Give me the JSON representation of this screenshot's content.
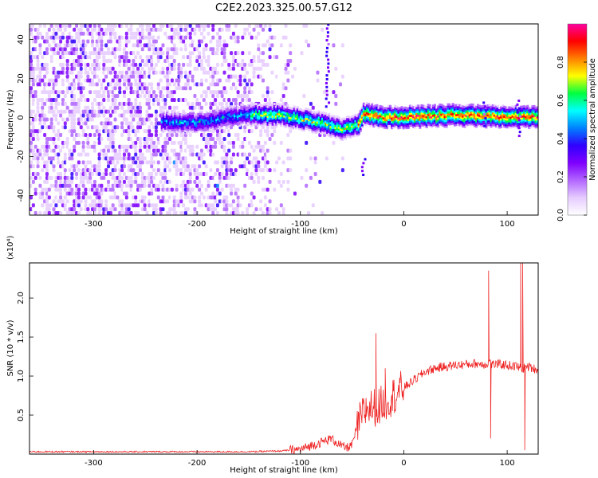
{
  "figure": {
    "title": "C2E2.2023.325.00.57.G12"
  },
  "chart_data": [
    {
      "type": "heatmap",
      "xlabel": "Height of straight line (km)",
      "ylabel": "Frequency (Hz)",
      "xlim": [
        -362,
        130
      ],
      "ylim": [
        -50,
        48
      ],
      "x_ticks": [
        -300,
        -200,
        -100,
        0,
        100
      ],
      "x_tick_labels": [
        "-300",
        "-200",
        "-100",
        "0",
        "100"
      ],
      "y_ticks": [
        -40,
        -20,
        0,
        20,
        40
      ],
      "y_tick_labels": [
        "-40",
        "-20",
        "0",
        "20",
        "40"
      ],
      "colorbar": {
        "label": "Normalized spectral amplitude",
        "range": [
          0.0,
          1.0
        ],
        "ticks": [
          0.0,
          0.2,
          0.4,
          0.6,
          0.8
        ],
        "tick_labels": [
          "0.0",
          "0.2",
          "0.4",
          "0.6",
          "0.8"
        ],
        "colors": [
          "#ffffff",
          "#e6ccff",
          "#b266ff",
          "#7f00ff",
          "#3000ff",
          "#0080ff",
          "#00ffff",
          "#00ff40",
          "#ffff00",
          "#ff8000",
          "#ff0000",
          "#ff00a0"
        ]
      },
      "ridge": {
        "description_points_x": [
          -235,
          -200,
          -160,
          -120,
          -100,
          -80,
          -60,
          -45,
          -40,
          -20,
          0,
          50,
          100,
          130
        ],
        "description_points_y": [
          -2,
          -3,
          1,
          1,
          -1,
          -3,
          -6,
          -4,
          2,
          0,
          0,
          1,
          0,
          0
        ]
      }
    },
    {
      "type": "line",
      "xlabel": "Height of straight line (km)",
      "ylabel": "SNR (10 * v/v)",
      "y_exponent_label": "(x10⁴)",
      "xlim": [
        -362,
        130
      ],
      "ylim": [
        0,
        2.45
      ],
      "x_ticks": [
        -300,
        -200,
        -100,
        0,
        100
      ],
      "x_tick_labels": [
        "-300",
        "-200",
        "-100",
        "0",
        "100"
      ],
      "y_ticks": [
        0.5,
        1.0,
        1.5,
        2.0
      ],
      "y_tick_labels": [
        "0.5",
        "1.0",
        "1.5",
        "2.0"
      ],
      "series": [
        {
          "color": "#ee2222",
          "x": [
            -362,
            -300,
            -250,
            -200,
            -150,
            -120,
            -100,
            -80,
            -70,
            -60,
            -55,
            -50,
            -45,
            -40,
            -35,
            -30,
            -25,
            -20,
            -15,
            -10,
            0,
            10,
            20,
            30,
            40,
            50,
            60,
            70,
            80,
            83,
            85,
            90,
            100,
            110,
            113,
            116,
            120,
            130
          ],
          "y": [
            0.03,
            0.03,
            0.03,
            0.03,
            0.03,
            0.04,
            0.06,
            0.15,
            0.2,
            0.1,
            0.08,
            0.12,
            0.35,
            0.5,
            0.6,
            0.6,
            0.6,
            0.65,
            0.7,
            0.75,
            0.85,
            0.95,
            1.05,
            1.1,
            1.12,
            1.14,
            1.15,
            1.16,
            1.15,
            1.2,
            1.15,
            1.15,
            1.14,
            1.12,
            1.1,
            1.1,
            1.12,
            1.08
          ],
          "spikes": [
            {
              "x": -27,
              "y": 1.55
            },
            {
              "x": -18,
              "y": 1.1
            },
            {
              "x": 82,
              "y": 2.35
            },
            {
              "x": 84,
              "y": 0.2
            },
            {
              "x": 113,
              "y": 2.45
            },
            {
              "x": 115,
              "y": 2.45
            },
            {
              "x": 117,
              "y": 0.05
            }
          ]
        }
      ]
    }
  ]
}
